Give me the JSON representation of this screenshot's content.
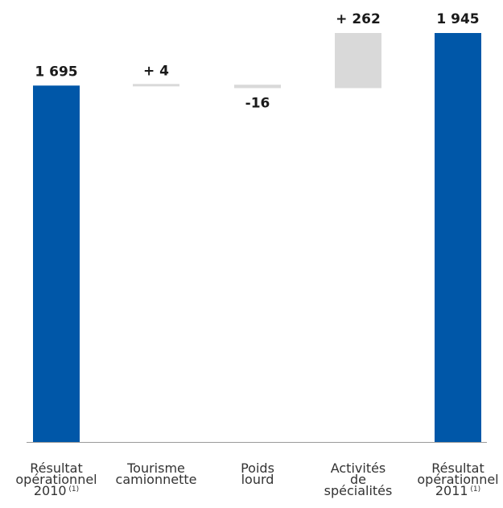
{
  "chart_data": {
    "type": "bar",
    "subtype": "waterfall",
    "title": "",
    "xlabel": "",
    "ylabel": "",
    "categories": [
      "Résultat opérationnel 2010 (1)",
      "Tourisme camionnette",
      "Poids lourd",
      "Activités de spécialités",
      "Résultat opérationnel 2011 (1)"
    ],
    "category_lines": [
      [
        "Résultat",
        "opérationnel",
        "2010"
      ],
      [
        "Tourisme",
        "camionnette"
      ],
      [
        "Poids",
        "lourd"
      ],
      [
        "Activités",
        "de",
        "spécialités"
      ],
      [
        "Résultat",
        "opérationnel",
        "2011"
      ]
    ],
    "category_superscripts": [
      "(1)",
      "",
      "",
      "",
      "(1)"
    ],
    "values": [
      1695,
      4,
      -16,
      262,
      1945
    ],
    "data_labels": [
      "1 695",
      "+ 4",
      "-16",
      "+ 262",
      "1 945"
    ],
    "bar_kinds": [
      "total",
      "delta",
      "delta",
      "delta",
      "total"
    ],
    "ylim": [
      0,
      1945
    ],
    "grid": false,
    "legend": "none",
    "colors": {
      "total": "#0057A8",
      "delta": "#D9D9D9",
      "axis": "#9A9A9A"
    }
  }
}
